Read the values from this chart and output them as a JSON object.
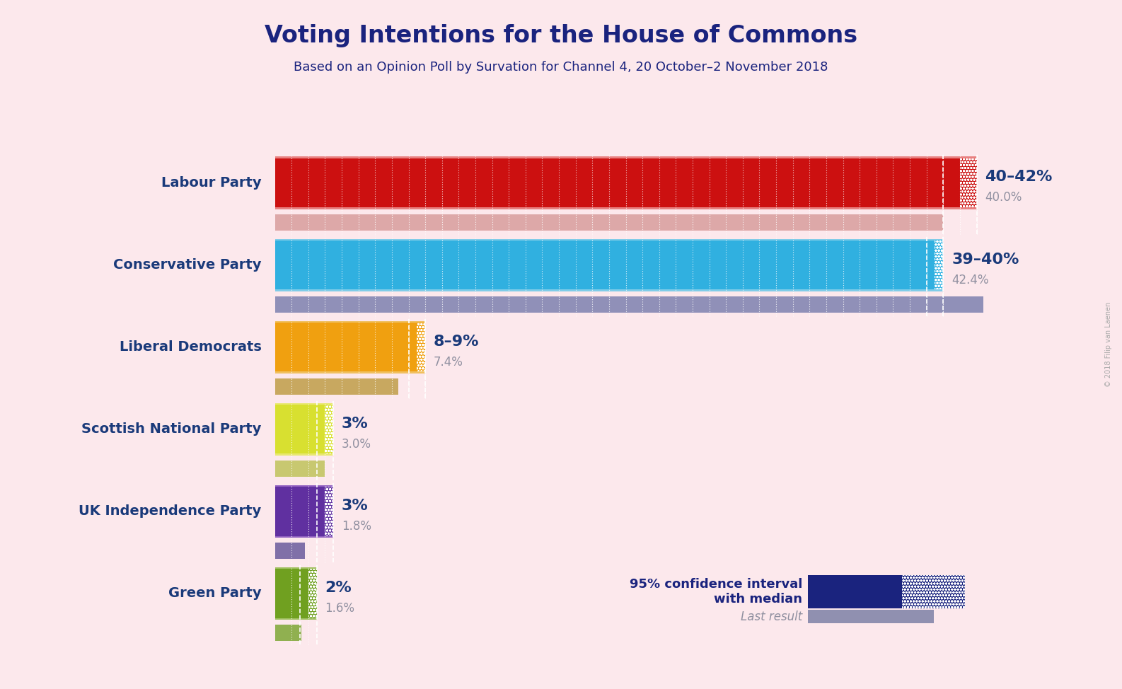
{
  "title": "Voting Intentions for the House of Commons",
  "subtitle": "Based on an Opinion Poll by Survation for Channel 4, 20 October–2 November 2018",
  "background_color": "#fce8ec",
  "title_color": "#1a237e",
  "subtitle_color": "#1a237e",
  "parties": [
    {
      "name": "Labour Party",
      "median": 41.0,
      "ci_low": 40.0,
      "ci_high": 42.0,
      "last_result": 40.0,
      "bar_color": "#cc1010",
      "ci_color": "#e88080",
      "last_color": "#dda8a8",
      "label": "40–42%",
      "last_label": "40.0%"
    },
    {
      "name": "Conservative Party",
      "median": 39.5,
      "ci_low": 39.0,
      "ci_high": 40.0,
      "last_result": 42.4,
      "bar_color": "#30b0e0",
      "ci_color": "#80cce8",
      "last_color": "#9090b8",
      "label": "39–40%",
      "last_label": "42.4%"
    },
    {
      "name": "Liberal Democrats",
      "median": 8.5,
      "ci_low": 8.0,
      "ci_high": 9.0,
      "last_result": 7.4,
      "bar_color": "#f0a010",
      "ci_color": "#f0c060",
      "last_color": "#c8a860",
      "label": "8–9%",
      "last_label": "7.4%"
    },
    {
      "name": "Scottish National Party",
      "median": 3.0,
      "ci_low": 2.5,
      "ci_high": 3.5,
      "last_result": 3.0,
      "bar_color": "#d8e030",
      "ci_color": "#e8e870",
      "last_color": "#c8c870",
      "label": "3%",
      "last_label": "3.0%"
    },
    {
      "name": "UK Independence Party",
      "median": 3.0,
      "ci_low": 2.5,
      "ci_high": 3.5,
      "last_result": 1.8,
      "bar_color": "#6030a0",
      "ci_color": "#9060c0",
      "last_color": "#8070a8",
      "label": "3%",
      "last_label": "1.8%"
    },
    {
      "name": "Green Party",
      "median": 2.0,
      "ci_low": 1.5,
      "ci_high": 2.5,
      "last_result": 1.6,
      "bar_color": "#70a020",
      "ci_color": "#a0c060",
      "last_color": "#90b050",
      "label": "2%",
      "last_label": "1.6%"
    }
  ],
  "xlim": [
    0,
    46
  ],
  "label_color": "#1a3a7a",
  "last_label_color": "#9090a0",
  "legend_ci_color": "#1a237e",
  "legend_last_color": "#9090b0",
  "copyright": "© 2018 Filip van Laenen"
}
